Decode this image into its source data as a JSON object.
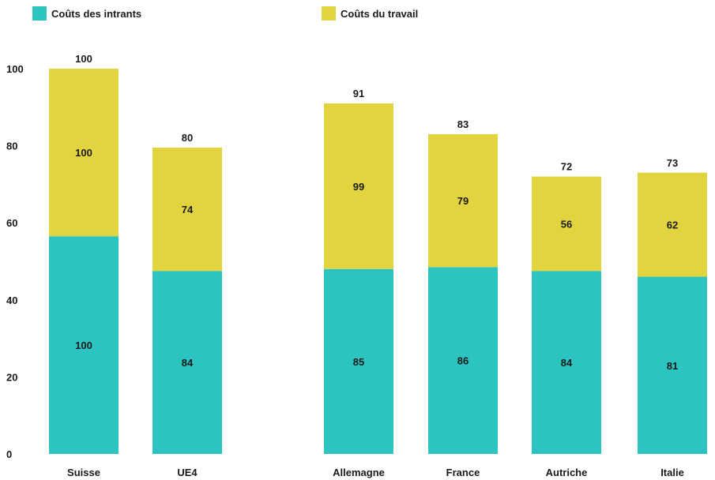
{
  "chart_data": {
    "type": "bar",
    "stacked": true,
    "categories": [
      "Suisse",
      "UE4",
      "Allemagne",
      "France",
      "Autriche",
      "Italie"
    ],
    "series": [
      {
        "name": "Coûts des intrants",
        "color": "#2cc4c0",
        "values": [
          56.5,
          47.5,
          48,
          48.5,
          47.5,
          46
        ],
        "labels": [
          "100",
          "84",
          "85",
          "86",
          "84",
          "81"
        ]
      },
      {
        "name": "Coûts du travail",
        "color": "#e2d43e",
        "values": [
          43.5,
          32,
          43,
          34.5,
          24.5,
          27
        ],
        "labels": [
          "100",
          "74",
          "99",
          "79",
          "56",
          "62"
        ]
      }
    ],
    "totals": [
      "100",
      "80",
      "91",
      "83",
      "72",
      "73"
    ],
    "ylim": [
      0,
      100
    ],
    "yticks": [
      0,
      20,
      40,
      60,
      80,
      100
    ],
    "legend_position": "top-left",
    "grid": false
  }
}
